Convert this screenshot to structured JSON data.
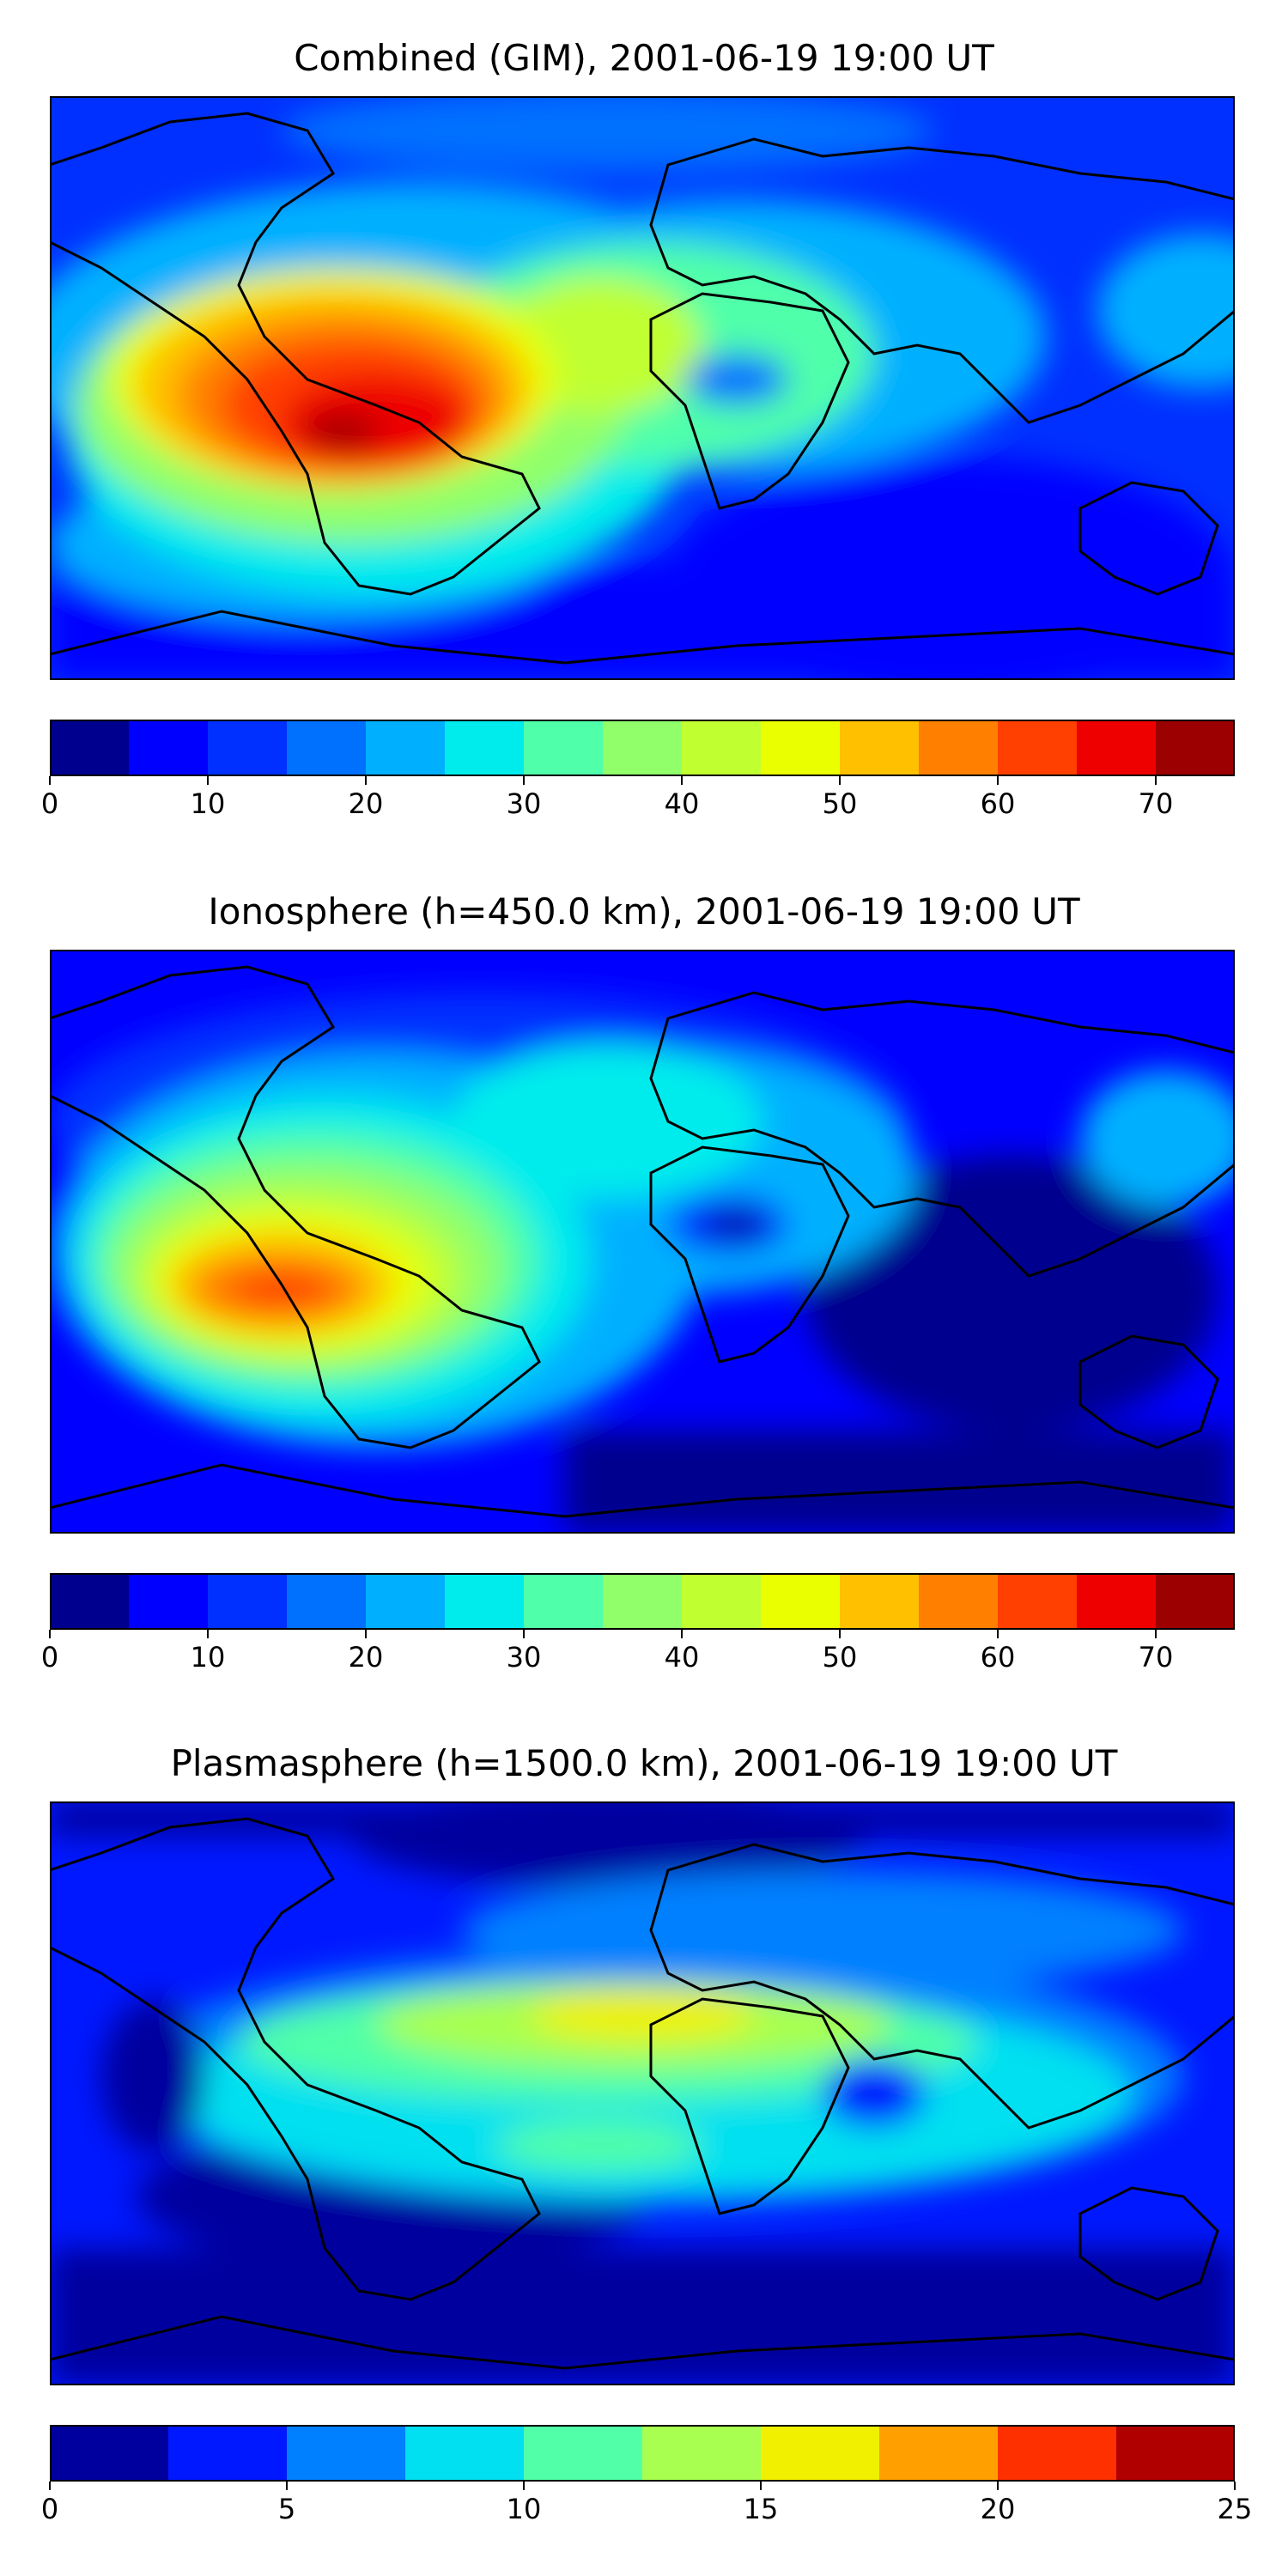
{
  "panels": [
    {
      "title": "Combined (GIM), 2001-06-19 19:00 UT",
      "colorbar": {
        "min": 0,
        "max": 75,
        "ticks": [
          0,
          10,
          20,
          30,
          40,
          50,
          60,
          70
        ],
        "colors": [
          "#00008e",
          "#0000ff",
          "#0030ff",
          "#0070ff",
          "#00b0ff",
          "#00ecec",
          "#50ffaa",
          "#90ff6a",
          "#c0ff30",
          "#eaff00",
          "#ffc000",
          "#ff8000",
          "#ff4000",
          "#ee0000",
          "#9c0000"
        ]
      }
    },
    {
      "title": "Ionosphere  (h=450.0 km), 2001-06-19 19:00 UT",
      "colorbar": {
        "min": 0,
        "max": 75,
        "ticks": [
          0,
          10,
          20,
          30,
          40,
          50,
          60,
          70
        ],
        "colors": [
          "#00008e",
          "#0000ff",
          "#0030ff",
          "#0070ff",
          "#00b0ff",
          "#00ecec",
          "#50ffaa",
          "#90ff6a",
          "#c0ff30",
          "#eaff00",
          "#ffc000",
          "#ff8000",
          "#ff4000",
          "#ee0000",
          "#9c0000"
        ]
      }
    },
    {
      "title": "Plasmasphere (h=1500.0 km), 2001-06-19 19:00 UT",
      "colorbar": {
        "min": 0,
        "max": 25,
        "ticks": [
          0,
          5,
          10,
          15,
          20,
          25
        ],
        "colors": [
          "#00009e",
          "#0018ff",
          "#0080ff",
          "#00e0f0",
          "#50ffa8",
          "#a8ff50",
          "#f0f000",
          "#ffa000",
          "#ff3000",
          "#b00000"
        ]
      }
    }
  ]
}
